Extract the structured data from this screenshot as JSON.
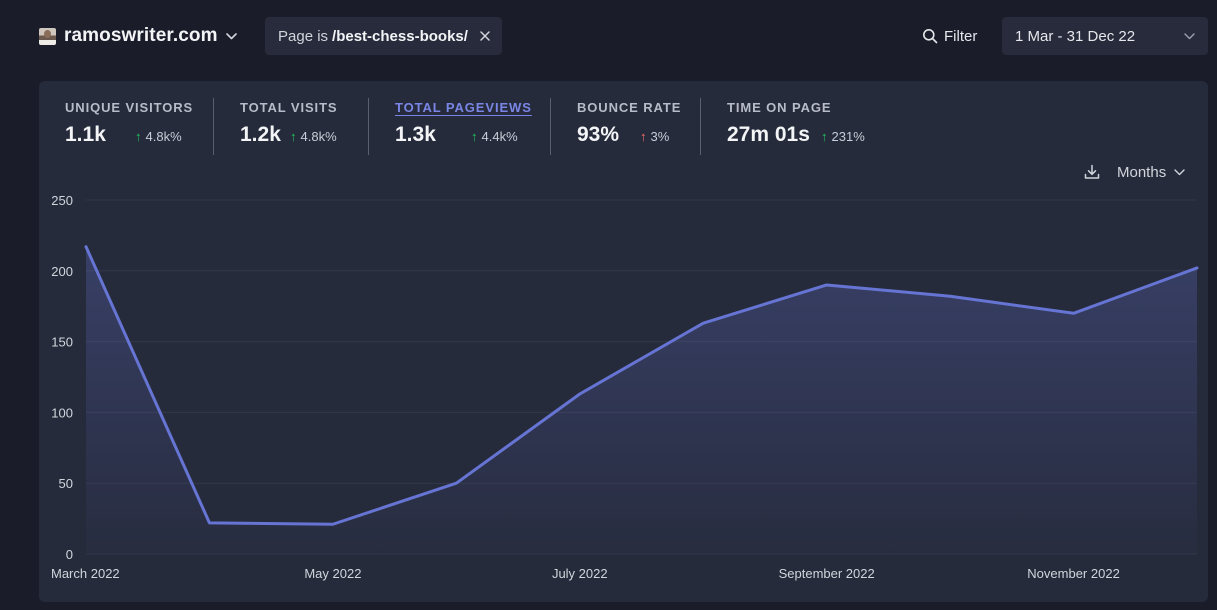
{
  "header": {
    "site_name": "ramoswriter.com",
    "filter_prefix": "Page is",
    "filter_value": "/best-chess-books/",
    "filter_button": "Filter",
    "date_range": "1 Mar - 31 Dec 22"
  },
  "stats": [
    {
      "label": "UNIQUE VISITORS",
      "value": "1.1k",
      "change": "4.8k%",
      "direction": "up",
      "color": "#22c55e"
    },
    {
      "label": "TOTAL VISITS",
      "value": "1.2k",
      "change": "4.8k%",
      "direction": "up",
      "color": "#22c55e"
    },
    {
      "label": "TOTAL PAGEVIEWS",
      "value": "1.3k",
      "change": "4.4k%",
      "direction": "up",
      "color": "#22c55e",
      "active": true
    },
    {
      "label": "BOUNCE RATE",
      "value": "93%",
      "change": "3%",
      "direction": "up",
      "color": "#f87171"
    },
    {
      "label": "TIME ON PAGE",
      "value": "27m 01s",
      "change": "231%",
      "direction": "up",
      "color": "#22c55e"
    }
  ],
  "controls": {
    "interval": "Months",
    "download_icon": "download-icon"
  },
  "colors": {
    "accent": "#6674d3",
    "background": "#1a1d29",
    "card": "#262b3c"
  },
  "chart_data": {
    "type": "area",
    "x": [
      "March 2022",
      "April 2022",
      "May 2022",
      "June 2022",
      "July 2022",
      "August 2022",
      "September 2022",
      "October 2022",
      "November 2022",
      "December 2022"
    ],
    "x_tick_labels": [
      "March 2022",
      "",
      "May 2022",
      "",
      "July 2022",
      "",
      "September 2022",
      "",
      "November 2022",
      ""
    ],
    "series": [
      {
        "values": [
          217,
          22,
          21,
          50,
          113,
          163,
          190,
          182,
          170,
          202
        ]
      }
    ],
    "y_ticks": [
      0,
      50,
      100,
      150,
      200,
      250
    ],
    "ylim": [
      0,
      250
    ],
    "grid": true
  }
}
